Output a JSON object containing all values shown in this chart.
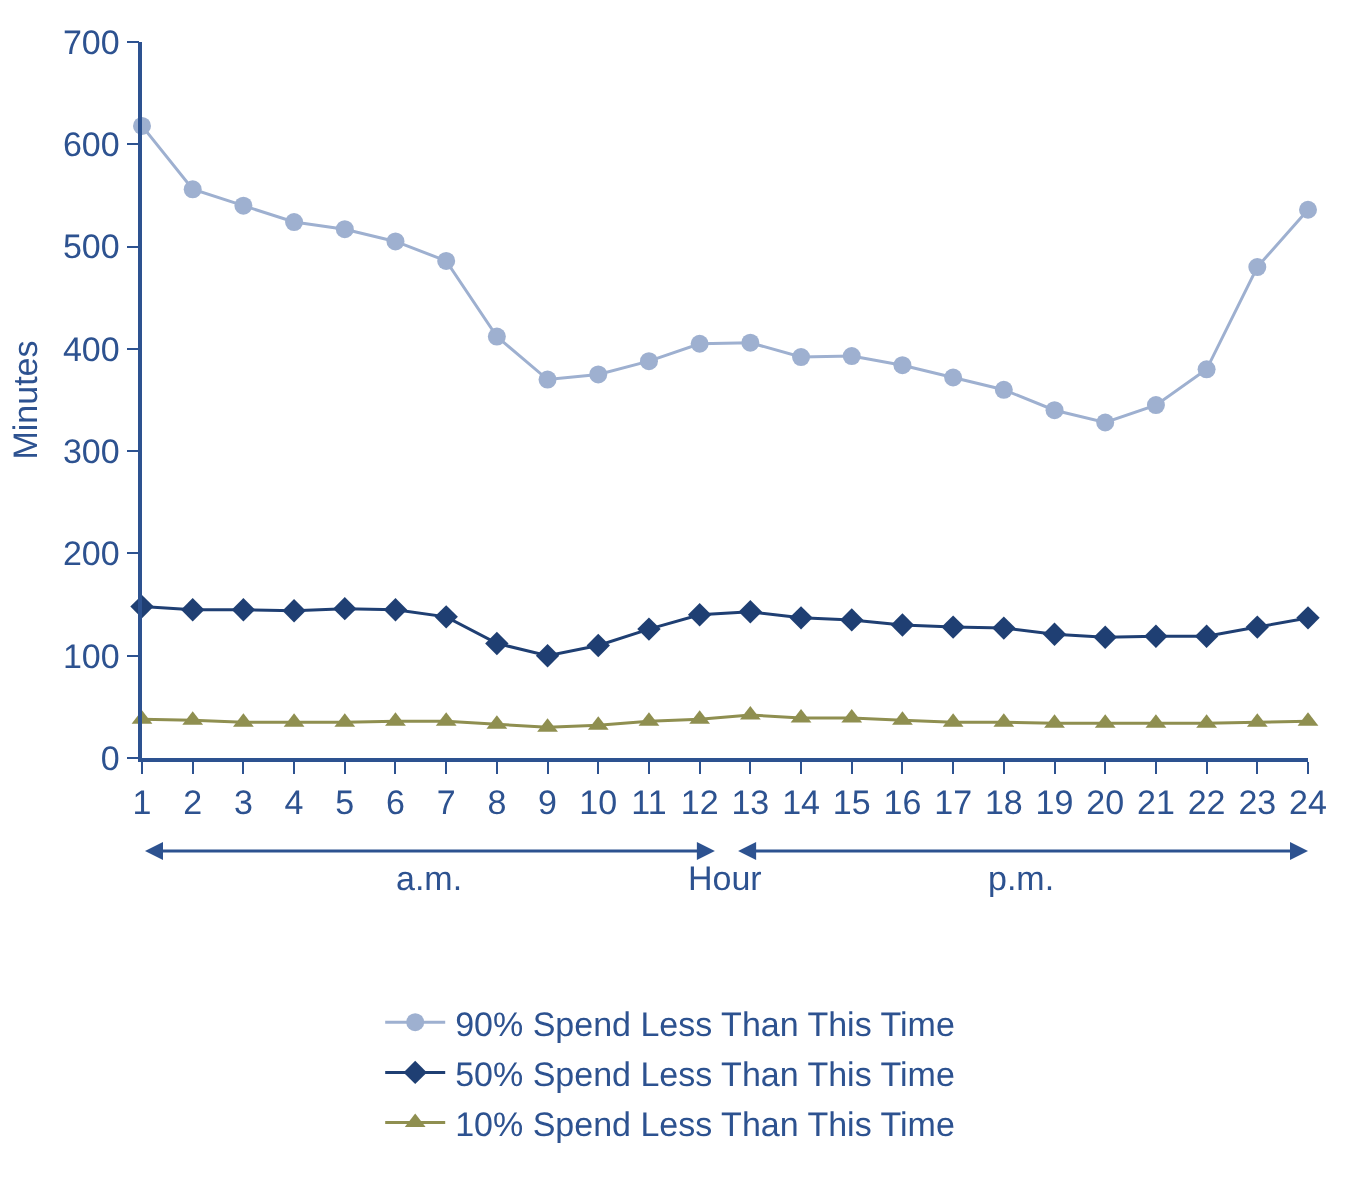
{
  "chart_data": {
    "type": "line",
    "ylabel": "Minutes",
    "xlabel": "Hour",
    "x": [
      1,
      2,
      3,
      4,
      5,
      6,
      7,
      8,
      9,
      10,
      11,
      12,
      13,
      14,
      15,
      16,
      17,
      18,
      19,
      20,
      21,
      22,
      23,
      24
    ],
    "series": [
      {
        "name": "90% Spend Less Than This Time",
        "color": "#9eb0d0",
        "marker": "circle",
        "values": [
          618,
          556,
          540,
          524,
          517,
          505,
          486,
          412,
          370,
          375,
          388,
          405,
          406,
          392,
          393,
          384,
          372,
          360,
          340,
          328,
          345,
          380,
          480,
          536
        ]
      },
      {
        "name": "50% Spend Less Than This Time",
        "color": "#1f3f73",
        "marker": "diamond",
        "values": [
          148,
          145,
          145,
          144,
          146,
          145,
          138,
          112,
          100,
          110,
          126,
          140,
          143,
          137,
          135,
          130,
          128,
          127,
          121,
          118,
          119,
          119,
          128,
          137
        ]
      },
      {
        "name": "10% Spend Less Than This Time",
        "color": "#8f8f50",
        "marker": "triangle",
        "values": [
          38,
          37,
          35,
          35,
          35,
          36,
          36,
          33,
          30,
          32,
          36,
          38,
          42,
          39,
          39,
          37,
          35,
          35,
          34,
          34,
          34,
          34,
          35,
          36
        ]
      }
    ],
    "xlim": [
      1,
      24
    ],
    "xticks": [
      1,
      2,
      3,
      4,
      5,
      6,
      7,
      8,
      9,
      10,
      11,
      12,
      13,
      14,
      15,
      16,
      17,
      18,
      19,
      20,
      21,
      22,
      23,
      24
    ],
    "ylim": [
      0,
      700
    ],
    "yticks": [
      0,
      100,
      200,
      300,
      400,
      500,
      600,
      700
    ],
    "annotations": [
      "a.m.",
      "p.m."
    ],
    "legend": "bottom",
    "line_style": "solid"
  }
}
